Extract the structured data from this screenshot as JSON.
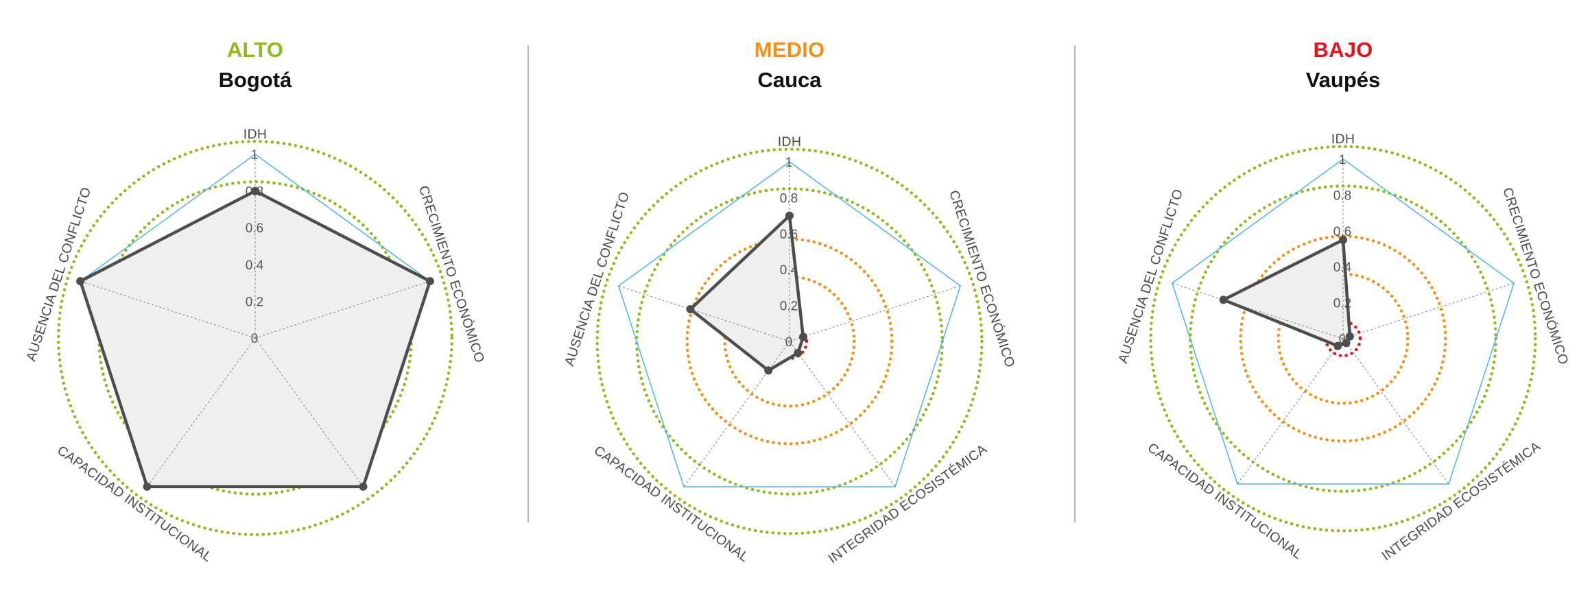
{
  "chart_data": [
    {
      "type": "radar",
      "level": "ALTO",
      "level_color": "#8dba1f",
      "region": "Bogotá",
      "axes": [
        "IDH",
        "CRECIMIENTO ECONÓMICO",
        "",
        "CAPACIDAD INSTITUCIONAL",
        "AUSENCIA DEL CONFLICTO"
      ],
      "values": [
        0.8,
        1.0,
        1.0,
        1.0,
        1.0
      ],
      "ticks": [
        "0",
        "0.2",
        "0.4",
        "0.6",
        "0.8",
        "1"
      ],
      "rlim": [
        0,
        1
      ]
    },
    {
      "type": "radar",
      "level": "MEDIO",
      "level_color": "#f39019",
      "region": "Cauca",
      "axes": [
        "IDH",
        "CRECIMIENTO ECONÓMICO",
        "INTEGRIDAD ECOSISTÉMICA",
        "CAPACIDAD INSTITUCIONAL",
        "AUSENCIA DEL CONFLICTO"
      ],
      "values": [
        0.7,
        0.08,
        0.08,
        0.2,
        0.58
      ],
      "ticks": [
        "0",
        "0.2",
        "0.4",
        "0.6",
        "0.8",
        "1"
      ],
      "rlim": [
        0,
        1
      ]
    },
    {
      "type": "radar",
      "level": "BAJO",
      "level_color": "#e3141b",
      "region": "Vaupés",
      "axes": [
        "IDH",
        "CRECIMIENTO ECONÓMICO",
        "INTEGRIDAD ECOSISTÉMICA",
        "CAPACIDAD INSTITUCIONAL",
        "AUSENCIA DEL CONFLICTO"
      ],
      "values": [
        0.55,
        0.04,
        0.03,
        0.05,
        0.7
      ],
      "ticks": [
        "0",
        "0.2",
        "0.4",
        "0.6",
        "0.8",
        "1"
      ],
      "rlim": [
        0,
        1
      ]
    }
  ],
  "style": {
    "green_ring": "#8dba1f",
    "orange_ring": "#f39019",
    "red_ring": "#e3141b",
    "frame": "#4fb4e8",
    "series_line": "#4d4d4d",
    "series_fill": "#efefef"
  }
}
